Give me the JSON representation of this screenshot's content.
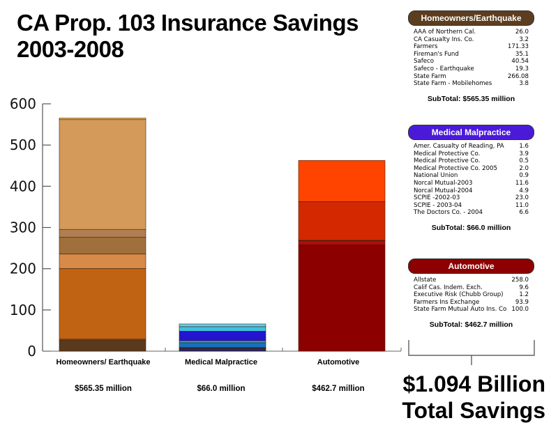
{
  "title_line1": "CA Prop. 103 Insurance Savings",
  "title_line2": "2003-2008",
  "chart_data": {
    "type": "bar",
    "stacked": true,
    "title": "CA Prop. 103 Insurance Savings 2003-2008",
    "ylabel": "",
    "xlabel": "",
    "ylim": [
      0,
      600
    ],
    "yticks": [
      0,
      100,
      200,
      300,
      400,
      500,
      600
    ],
    "categories": [
      "Homeowners/ Earthquake",
      "Medical Malpractice",
      "Automotive"
    ],
    "category_totals": [
      "$565.35 million",
      "$66.0 million",
      "$462.7 million"
    ],
    "stacks": [
      {
        "category": "Homeowners/ Earthquake",
        "segments": [
          {
            "name": "AAA of Northern Cal.",
            "value": 26.0,
            "color": "#5a3a1c"
          },
          {
            "name": "CA Casualty Ins. Co.",
            "value": 3.2,
            "color": "#7a4a1e"
          },
          {
            "name": "Farmers",
            "value": 171.33,
            "color": "#c06414"
          },
          {
            "name": "Fireman's Fund",
            "value": 35.1,
            "color": "#d88a48"
          },
          {
            "name": "Safeco",
            "value": 40.54,
            "color": "#a0703c"
          },
          {
            "name": "Safeco - Earthquake",
            "value": 19.3,
            "color": "#b07e50"
          },
          {
            "name": "State Farm",
            "value": 266.08,
            "color": "#d49a5a"
          },
          {
            "name": "State Farm - Mobilehomes",
            "value": 3.8,
            "color": "#e8b450"
          }
        ]
      },
      {
        "category": "Medical Malpractice",
        "segments": [
          {
            "name": "Amer. Casualty of Reading, PA",
            "value": 1.6,
            "color": "#2a1a90"
          },
          {
            "name": "Medical Protective Co.",
            "value": 3.9,
            "color": "#1e2ac0"
          },
          {
            "name": "Medical Protective Co.",
            "value": 0.5,
            "color": "#0a2a70"
          },
          {
            "name": "Medical Protective Co. 2005",
            "value": 2.0,
            "color": "#1848a0"
          },
          {
            "name": "National Union",
            "value": 0.9,
            "color": "#103a80"
          },
          {
            "name": "Norcal Mutual-2003",
            "value": 11.6,
            "color": "#1870c0"
          },
          {
            "name": "Norcal Mutual-2004",
            "value": 4.9,
            "color": "#28a8d0"
          },
          {
            "name": "SCPIE -2002-03",
            "value": 23.0,
            "color": "#2414d0"
          },
          {
            "name": "SCPIE - 2003-04",
            "value": 11.0,
            "color": "#40c0e0"
          },
          {
            "name": "The Doctors Co. - 2004",
            "value": 6.6,
            "color": "#60d0f0"
          }
        ]
      },
      {
        "category": "Automotive",
        "segments": [
          {
            "name": "Allstate",
            "value": 258.0,
            "color": "#8c0000"
          },
          {
            "name": "Calif Cas. Indem. Exch.",
            "value": 9.6,
            "color": "#b80808"
          },
          {
            "name": "Executive Risk (Chubb Group)",
            "value": 1.2,
            "color": "#a00000"
          },
          {
            "name": "Farmers Ins Exchange",
            "value": 93.9,
            "color": "#d42800"
          },
          {
            "name": "State Farm Mutual Auto Ins. Co",
            "value": 100.0,
            "color": "#ff4400"
          }
        ]
      }
    ]
  },
  "panels": [
    {
      "header": "Homeowners/Earthquake",
      "color": "#5c3d1e",
      "rows": [
        [
          "AAA of Northern Cal.",
          "26.0"
        ],
        [
          "CA Casualty Ins. Co.",
          "3.2"
        ],
        [
          "Farmers",
          "171.33"
        ],
        [
          "Fireman's Fund",
          "35.1"
        ],
        [
          "Safeco",
          "40.54"
        ],
        [
          "Safeco - Earthquake",
          "19.3"
        ],
        [
          "State Farm",
          "266.08"
        ],
        [
          "State Farm - Mobilehomes",
          "3.8"
        ]
      ],
      "subtotal": "SubTotal: $565.35 million"
    },
    {
      "header": "Medical Malpractice",
      "color": "#4a1ad8",
      "rows": [
        [
          "Amer. Casualty of Reading, PA",
          "1.6"
        ],
        [
          "Medical Protective Co.",
          "3.9"
        ],
        [
          "Medical Protective Co.",
          "0.5"
        ],
        [
          "Medical Protective Co. 2005",
          "2.0"
        ],
        [
          "National Union",
          "0.9"
        ],
        [
          "Norcal Mutual-2003",
          "11.6"
        ],
        [
          "Norcal Mutual-2004",
          "4.9"
        ],
        [
          "SCPIE -2002-03",
          "23.0"
        ],
        [
          "SCPIE - 2003-04",
          "11.0"
        ],
        [
          "The Doctors Co. - 2004",
          "6.6"
        ]
      ],
      "subtotal": "SubTotal: $66.0 million"
    },
    {
      "header": "Automotive",
      "color": "#8c0000",
      "rows": [
        [
          "Allstate",
          "258.0"
        ],
        [
          "Calif Cas. Indem. Exch.",
          "9.6"
        ],
        [
          "Executive Risk (Chubb Group)",
          "1.2"
        ],
        [
          "Farmers Ins Exchange",
          "93.9"
        ],
        [
          "State Farm Mutual Auto Ins. Co",
          "100.0"
        ]
      ],
      "subtotal": "SubTotal: $462.7 million"
    }
  ],
  "total_line1": "$1.094 Billion",
  "total_line2": "Total Savings"
}
